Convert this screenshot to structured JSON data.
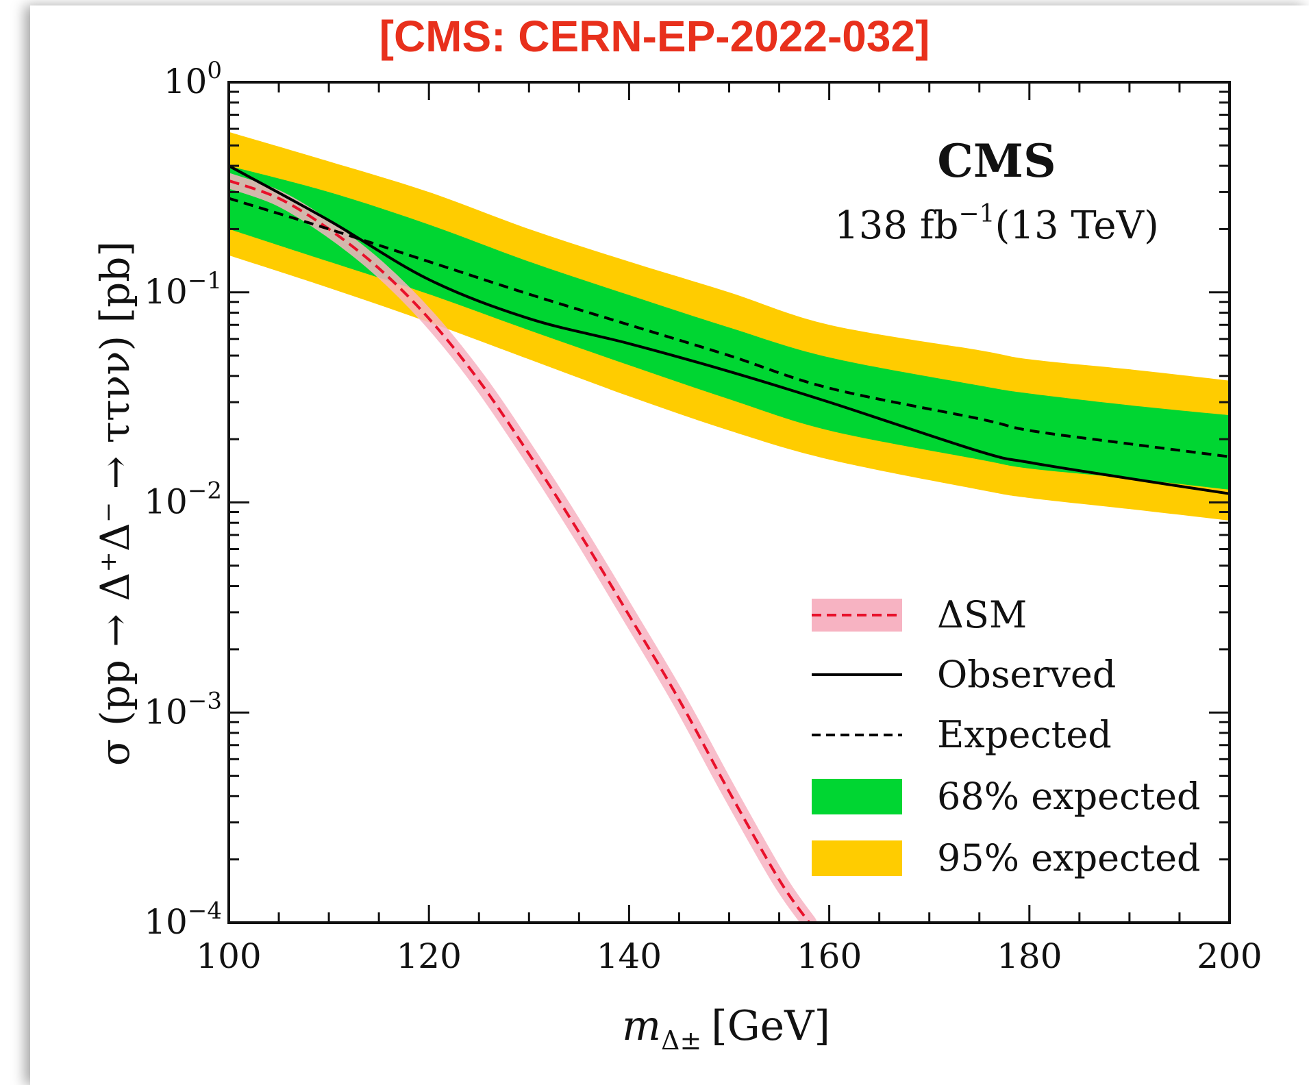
{
  "citation": {
    "text": "[CMS: CERN-EP-2022-032]",
    "color": "#e8301c"
  },
  "chart_data": {
    "type": "line",
    "title": "CMS",
    "subtitle": "138 fb",
    "subtitle_sup": "−1",
    "subtitle_tail": "(13 TeV)",
    "xlabel": "m",
    "xlabel_sub": "Δ±",
    "xlabel_unit": "[GeV]",
    "ylabel": "σ (pp → Δ⁺Δ⁻ → ττνν) [pb]",
    "xlim": [
      100,
      200
    ],
    "ylim": [
      0.0001,
      1
    ],
    "yscale": "log",
    "xticks": [
      100,
      120,
      140,
      160,
      180,
      200
    ],
    "yticks": [
      {
        "value": 1,
        "base": "10",
        "exp": "0"
      },
      {
        "value": 0.1,
        "base": "10",
        "exp": "−1"
      },
      {
        "value": 0.01,
        "base": "10",
        "exp": "−2"
      },
      {
        "value": 0.001,
        "base": "10",
        "exp": "−3"
      },
      {
        "value": 0.0001,
        "base": "10",
        "exp": "−4"
      }
    ],
    "legend_position": "lower-right",
    "colors": {
      "band95": "#ffcc00",
      "band68": "#00d632",
      "sm": "#e8102a",
      "sm_band": "#f7b3c2",
      "line": "#000000"
    },
    "x": [
      100,
      110,
      120,
      130,
      140,
      150,
      160,
      175,
      180,
      190,
      200
    ],
    "series": [
      {
        "name": "95% expected",
        "kind": "band",
        "lower": [
          0.15,
          0.105,
          0.072,
          0.048,
          0.032,
          0.022,
          0.016,
          0.0115,
          0.0105,
          0.0093,
          0.0082
        ],
        "upper": [
          0.58,
          0.42,
          0.3,
          0.2,
          0.14,
          0.1,
          0.07,
          0.053,
          0.048,
          0.043,
          0.038
        ]
      },
      {
        "name": "68% expected",
        "kind": "band",
        "lower": [
          0.2,
          0.14,
          0.098,
          0.066,
          0.045,
          0.031,
          0.022,
          0.016,
          0.0145,
          0.013,
          0.0115
        ],
        "upper": [
          0.4,
          0.3,
          0.21,
          0.14,
          0.097,
          0.068,
          0.049,
          0.036,
          0.033,
          0.029,
          0.026
        ]
      },
      {
        "name": "Expected",
        "kind": "dashed",
        "values": [
          0.28,
          0.2,
          0.14,
          0.098,
          0.07,
          0.05,
          0.035,
          0.025,
          0.022,
          0.019,
          0.0165
        ]
      },
      {
        "name": "Observed",
        "kind": "solid",
        "values": [
          0.4,
          0.22,
          0.115,
          0.075,
          0.057,
          0.042,
          0.03,
          0.0175,
          0.0155,
          0.013,
          0.011
        ]
      }
    ],
    "sm_curve": {
      "name": "ΔSM",
      "x": [
        100,
        105,
        110,
        115,
        120,
        125,
        130,
        135,
        140,
        145,
        150,
        155,
        158
      ],
      "values": [
        0.34,
        0.28,
        0.2,
        0.13,
        0.075,
        0.038,
        0.017,
        0.0072,
        0.0029,
        0.00115,
        0.00042,
        0.00016,
        0.0001
      ]
    },
    "legend": [
      {
        "label": "ΔSM",
        "kind": "sm"
      },
      {
        "label": "Observed",
        "kind": "solid"
      },
      {
        "label": "Expected",
        "kind": "dashed"
      },
      {
        "label": "68% expected",
        "kind": "band68"
      },
      {
        "label": "95% expected",
        "kind": "band95"
      }
    ]
  }
}
